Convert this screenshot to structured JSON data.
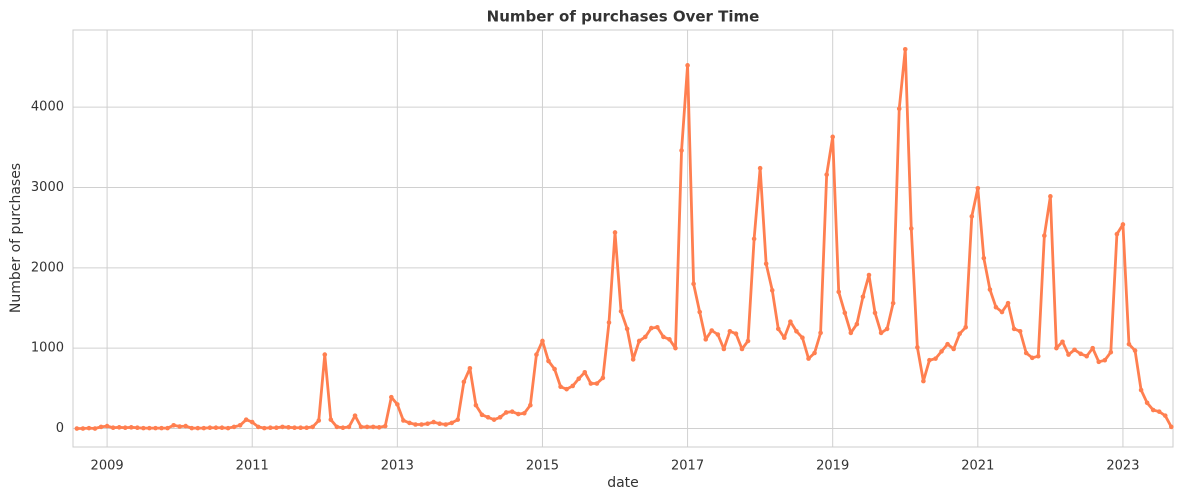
{
  "chart_data": {
    "type": "line",
    "title": "Number of purchases Over Time",
    "x_label": "date",
    "y_label": "Number of purchases",
    "color": "#ff7f50",
    "grid": true,
    "xlim": [
      2008.53,
      2023.69
    ],
    "ylim": [
      -230,
      4960
    ],
    "xticks": [
      2009,
      2011,
      2013,
      2015,
      2017,
      2019,
      2021,
      2023
    ],
    "yticks": [
      0,
      1000,
      2000,
      3000,
      4000
    ],
    "x": [
      2008.583,
      2008.667,
      2008.75,
      2008.833,
      2008.917,
      2009,
      2009.083,
      2009.167,
      2009.25,
      2009.333,
      2009.417,
      2009.5,
      2009.583,
      2009.667,
      2009.75,
      2009.833,
      2009.917,
      2010,
      2010.083,
      2010.167,
      2010.25,
      2010.333,
      2010.417,
      2010.5,
      2010.583,
      2010.667,
      2010.75,
      2010.833,
      2010.917,
      2011,
      2011.083,
      2011.167,
      2011.25,
      2011.333,
      2011.417,
      2011.5,
      2011.583,
      2011.667,
      2011.75,
      2011.833,
      2011.917,
      2012,
      2012.083,
      2012.167,
      2012.25,
      2012.333,
      2012.417,
      2012.5,
      2012.583,
      2012.667,
      2012.75,
      2012.833,
      2012.917,
      2013,
      2013.083,
      2013.167,
      2013.25,
      2013.333,
      2013.417,
      2013.5,
      2013.583,
      2013.667,
      2013.75,
      2013.833,
      2013.917,
      2014,
      2014.083,
      2014.167,
      2014.25,
      2014.333,
      2014.417,
      2014.5,
      2014.583,
      2014.667,
      2014.75,
      2014.833,
      2014.917,
      2015,
      2015.083,
      2015.167,
      2015.25,
      2015.333,
      2015.417,
      2015.5,
      2015.583,
      2015.667,
      2015.75,
      2015.833,
      2015.917,
      2016,
      2016.083,
      2016.167,
      2016.25,
      2016.333,
      2016.417,
      2016.5,
      2016.583,
      2016.667,
      2016.75,
      2016.833,
      2016.917,
      2017,
      2017.083,
      2017.167,
      2017.25,
      2017.333,
      2017.417,
      2017.5,
      2017.583,
      2017.667,
      2017.75,
      2017.833,
      2017.917,
      2018,
      2018.083,
      2018.167,
      2018.25,
      2018.333,
      2018.417,
      2018.5,
      2018.583,
      2018.667,
      2018.75,
      2018.833,
      2018.917,
      2019,
      2019.083,
      2019.167,
      2019.25,
      2019.333,
      2019.417,
      2019.5,
      2019.583,
      2019.667,
      2019.75,
      2019.833,
      2019.917,
      2020,
      2020.083,
      2020.167,
      2020.25,
      2020.333,
      2020.417,
      2020.5,
      2020.583,
      2020.667,
      2020.75,
      2020.833,
      2020.917,
      2021,
      2021.083,
      2021.167,
      2021.25,
      2021.333,
      2021.417,
      2021.5,
      2021.583,
      2021.667,
      2021.75,
      2021.833,
      2021.917,
      2022,
      2022.083,
      2022.167,
      2022.25,
      2022.333,
      2022.417,
      2022.5,
      2022.583,
      2022.667,
      2022.75,
      2022.833,
      2022.917,
      2023,
      2023.083,
      2023.167,
      2023.25,
      2023.333,
      2023.417,
      2023.5,
      2023.583,
      2023.667
    ],
    "values": [
      0,
      0,
      5,
      0,
      20,
      30,
      10,
      15,
      10,
      15,
      10,
      5,
      5,
      5,
      5,
      5,
      40,
      25,
      30,
      5,
      5,
      5,
      10,
      10,
      10,
      5,
      20,
      40,
      110,
      80,
      20,
      5,
      10,
      10,
      20,
      15,
      10,
      10,
      10,
      20,
      100,
      920,
      110,
      20,
      10,
      20,
      160,
      20,
      20,
      20,
      15,
      30,
      390,
      300,
      100,
      70,
      50,
      50,
      60,
      80,
      60,
      50,
      70,
      110,
      580,
      750,
      290,
      170,
      140,
      110,
      140,
      200,
      210,
      180,
      190,
      290,
      920,
      1090,
      840,
      740,
      520,
      490,
      530,
      620,
      700,
      560,
      560,
      630,
      1320,
      2440,
      1460,
      1240,
      860,
      1090,
      1140,
      1250,
      1260,
      1140,
      1110,
      1000,
      3460,
      4520,
      1800,
      1450,
      1110,
      1220,
      1170,
      990,
      1210,
      1180,
      990,
      1090,
      2360,
      3240,
      2050,
      1720,
      1240,
      1130,
      1330,
      1210,
      1130,
      870,
      940,
      1190,
      3160,
      3630,
      1700,
      1440,
      1190,
      1300,
      1640,
      1910,
      1440,
      1190,
      1240,
      1560,
      3980,
      4720,
      2490,
      1010,
      590,
      850,
      870,
      960,
      1050,
      990,
      1180,
      1260,
      2640,
      2990,
      2120,
      1730,
      1510,
      1450,
      1560,
      1240,
      1210,
      940,
      880,
      900,
      2400,
      2890,
      1000,
      1080,
      920,
      980,
      930,
      900,
      1000,
      830,
      850,
      950,
      2420,
      2540,
      1050,
      970,
      480,
      320,
      230,
      210,
      160,
      20
    ]
  }
}
